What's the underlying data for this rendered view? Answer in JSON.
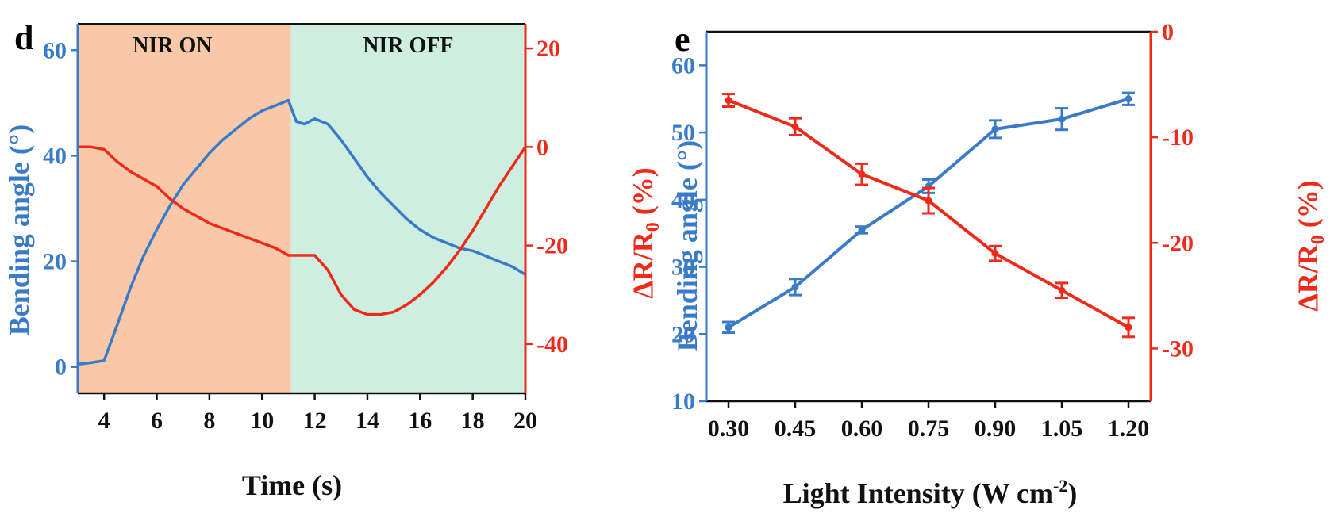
{
  "colors": {
    "blue": "#3a7bc8",
    "red": "#f02a1a",
    "on_region": "#f9c8a8",
    "off_region": "#cdeee0"
  },
  "chart_data": [
    {
      "panel": "d",
      "type": "line",
      "regions": [
        {
          "label": "NIR ON",
          "x_range": [
            3,
            11.1
          ]
        },
        {
          "label": "NIR OFF",
          "x_range": [
            11.1,
            20
          ]
        }
      ],
      "xlabel": "Time (s)",
      "ylabel_left": "Bending angle (°)",
      "ylabel_right": "ΔR/R0 (%)",
      "xlim": [
        3,
        20
      ],
      "ylim_left": [
        -5,
        65
      ],
      "ylim_right": [
        -50,
        25
      ],
      "xticks": [
        4,
        6,
        8,
        10,
        12,
        14,
        16,
        18,
        20
      ],
      "yticks_left": [
        0,
        20,
        40,
        60
      ],
      "yticks_right": [
        20,
        0,
        -20,
        -40
      ],
      "grid": false,
      "series": [
        {
          "axis": "left",
          "color": "blue",
          "x": [
            3,
            3.5,
            4,
            4.5,
            5,
            5.5,
            6,
            6.5,
            7,
            7.5,
            8,
            8.5,
            9,
            9.5,
            10,
            10.5,
            11,
            11.3,
            11.6,
            12,
            12.5,
            13,
            13.5,
            14,
            14.5,
            15,
            15.5,
            16,
            16.5,
            17,
            17.5,
            18,
            18.5,
            19,
            19.5,
            20
          ],
          "y": [
            0.5,
            0.8,
            1.2,
            8,
            15,
            21,
            26,
            30.5,
            34.5,
            37.5,
            40.5,
            43,
            45,
            47,
            48.5,
            49.5,
            50.5,
            46.5,
            46,
            47,
            46,
            43,
            39.5,
            36,
            33,
            30.5,
            28,
            26,
            24.5,
            23.5,
            22.5,
            22,
            21,
            20,
            19,
            17.5
          ]
        },
        {
          "axis": "right",
          "color": "red",
          "x": [
            3,
            3.5,
            4,
            4.5,
            5,
            5.5,
            6,
            6.5,
            7,
            7.5,
            8,
            8.5,
            9,
            9.5,
            10,
            10.5,
            11,
            11.5,
            12,
            12.5,
            13,
            13.5,
            14,
            14.5,
            15,
            15.5,
            16,
            16.5,
            17,
            17.5,
            18,
            18.5,
            19,
            19.5,
            20
          ],
          "y": [
            0,
            0,
            -0.5,
            -3,
            -5,
            -6.5,
            -8,
            -10.5,
            -12.5,
            -14,
            -15.5,
            -16.5,
            -17.5,
            -18.5,
            -19.5,
            -20.5,
            -22,
            -22,
            -22,
            -25,
            -30,
            -33,
            -34,
            -34,
            -33.5,
            -32,
            -30,
            -27.5,
            -24.5,
            -21,
            -17,
            -12.5,
            -8,
            -4,
            0
          ]
        }
      ]
    },
    {
      "panel": "e",
      "type": "line",
      "categories": [
        "0.30",
        "0.45",
        "0.60",
        "0.75",
        "0.90",
        "1.05",
        "1.20"
      ],
      "xlabel": "Light Intensity (W cm-2)",
      "ylabel_left": "Bending angle (°)",
      "ylabel_right": "ΔR/R0 (%)",
      "xlim": [
        0.25,
        1.25
      ],
      "ylim_left": [
        10,
        65
      ],
      "ylim_right": [
        -35,
        0
      ],
      "yticks_left": [
        10,
        20,
        30,
        40,
        50,
        60
      ],
      "yticks_right": [
        0,
        -10,
        -20,
        -30
      ],
      "grid": false,
      "series": [
        {
          "axis": "left",
          "color": "blue",
          "x": [
            0.3,
            0.45,
            0.6,
            0.75,
            0.9,
            1.05,
            1.2
          ],
          "y": [
            21,
            27,
            35.5,
            42,
            50.5,
            52,
            55
          ],
          "err": [
            0.8,
            1.2,
            0.5,
            1.0,
            1.3,
            1.6,
            0.9
          ]
        },
        {
          "axis": "right",
          "color": "red",
          "x": [
            0.3,
            0.45,
            0.6,
            0.75,
            0.9,
            1.05,
            1.2
          ],
          "y": [
            -6.5,
            -9,
            -13.5,
            -16,
            -21,
            -24.5,
            -28
          ],
          "err": [
            0.6,
            0.8,
            1.0,
            1.2,
            0.7,
            0.7,
            0.9
          ]
        }
      ]
    }
  ],
  "labels": {
    "panel_d": "d",
    "panel_e": "e",
    "d_region_on": "NIR ON",
    "d_region_off": "NIR OFF",
    "d_xlabel": "Time (s)",
    "d_ylabel_left": "Bending angle (°)",
    "d_ylabel_right_main": "ΔR/R",
    "d_ylabel_right_sub": "0",
    "d_ylabel_right_tail": " (%)",
    "e_xlabel_main": "Light Intensity (W cm",
    "e_xlabel_sup": "-2",
    "e_xlabel_tail": ")",
    "e_ylabel_left": "Bending angle (°)",
    "e_ylabel_right_main": "ΔR/R",
    "e_ylabel_right_sub": "0",
    "e_ylabel_right_tail": " (%)"
  }
}
